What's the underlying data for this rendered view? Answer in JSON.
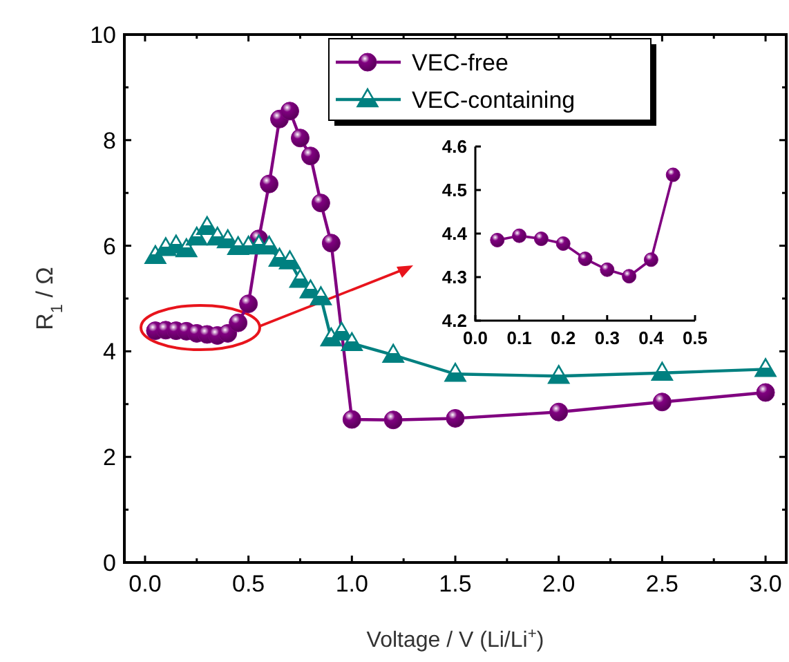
{
  "chart_data": [
    {
      "type": "line",
      "xlabel": "Voltage / V (Li/Li$^{+}$)",
      "ylabel": "R$_{1}$ / Ω",
      "xlim": [
        -0.1,
        3.1
      ],
      "ylim": [
        0,
        10
      ],
      "xticks": [
        {
          "value": 0,
          "label": "0.0"
        },
        {
          "value": 0.25,
          "label": null
        },
        {
          "value": 0.5,
          "label": "0.5"
        },
        {
          "value": 0.75,
          "label": null
        },
        {
          "value": 1,
          "label": "1.0"
        },
        {
          "value": 1.25,
          "label": null
        },
        {
          "value": 1.5,
          "label": "1.5"
        },
        {
          "value": 1.75,
          "label": null
        },
        {
          "value": 2,
          "label": "2.0"
        },
        {
          "value": 2.25,
          "label": null
        },
        {
          "value": 2.5,
          "label": "2.5"
        },
        {
          "value": 2.75,
          "label": null
        },
        {
          "value": 3,
          "label": "3.0"
        }
      ],
      "yticks": [
        0,
        {
          "value": 1,
          "label": null
        },
        2,
        {
          "value": 3,
          "label": null
        },
        4,
        {
          "value": 5,
          "label": null
        },
        6,
        {
          "value": 7,
          "label": null
        },
        8,
        {
          "value": 9,
          "label": null
        },
        10
      ],
      "legend": "top",
      "grid": false,
      "series": [
        {
          "name": "VEC-free",
          "color": "#800080",
          "marker": "circle",
          "line_style": "solid",
          "x": [
            0.05,
            0.1,
            0.15,
            0.2,
            0.25,
            0.3,
            0.35,
            0.4,
            0.45,
            0.5,
            0.55,
            0.6,
            0.65,
            0.7,
            0.75,
            0.8,
            0.85,
            0.9,
            1.0,
            1.2,
            1.5,
            2.0,
            2.5,
            3.0
          ],
          "values": [
            4.39,
            4.4,
            4.39,
            4.38,
            4.34,
            4.32,
            4.3,
            4.34,
            4.54,
            4.9,
            6.13,
            7.17,
            8.4,
            8.55,
            8.04,
            7.7,
            6.81,
            6.05,
            2.71,
            2.7,
            2.73,
            2.85,
            3.04,
            3.22
          ]
        },
        {
          "name": "VEC-containing",
          "color": "#008080",
          "marker": "triangle",
          "line_style": "solid",
          "x": [
            0.05,
            0.1,
            0.15,
            0.2,
            0.25,
            0.3,
            0.35,
            0.4,
            0.45,
            0.5,
            0.55,
            0.6,
            0.65,
            0.7,
            0.75,
            0.8,
            0.85,
            0.9,
            0.95,
            1.0,
            1.2,
            1.5,
            2.0,
            2.5,
            3.0
          ],
          "values": [
            5.8,
            5.95,
            6.0,
            5.93,
            6.15,
            6.35,
            6.15,
            6.1,
            5.97,
            5.98,
            6.0,
            5.98,
            5.75,
            5.7,
            5.35,
            5.15,
            5.02,
            4.24,
            4.35,
            4.15,
            3.93,
            3.57,
            3.53,
            3.59,
            3.66
          ]
        }
      ]
    },
    {
      "type": "line",
      "xlim": [
        0,
        0.5
      ],
      "ylim": [
        4.2,
        4.6
      ],
      "xticks": [
        {
          "value": 0,
          "label": "0.0"
        },
        {
          "value": 0.1,
          "label": "0.1"
        },
        {
          "value": 0.2,
          "label": "0.2"
        },
        {
          "value": 0.3,
          "label": "0.3"
        },
        {
          "value": 0.4,
          "label": "0.4"
        },
        {
          "value": 0.5,
          "label": "0.5"
        }
      ],
      "yticks": [
        {
          "value": 4.2,
          "label": "4.2"
        },
        {
          "value": 4.3,
          "label": "4.3"
        },
        {
          "value": 4.4,
          "label": "4.4"
        },
        {
          "value": 4.5,
          "label": "4.5"
        },
        {
          "value": 4.6,
          "label": "4.6"
        }
      ],
      "legend": false,
      "grid": false,
      "series": [
        {
          "color": "#800080",
          "marker": "circle",
          "line_style": "solid",
          "x": [
            0.05,
            0.1,
            0.15,
            0.2,
            0.25,
            0.3,
            0.35,
            0.4,
            0.45
          ],
          "values": [
            4.385,
            4.395,
            4.388,
            4.377,
            4.342,
            4.317,
            4.302,
            4.34,
            4.535
          ]
        }
      ]
    }
  ]
}
